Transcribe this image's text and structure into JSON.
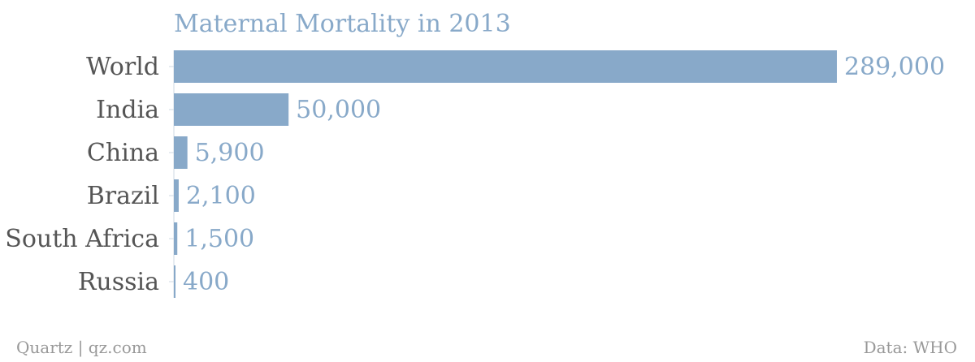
{
  "colors": {
    "bar": "#88a9c9",
    "value_text": "#88a9c9",
    "category_text": "#555555",
    "title": "#88a9c9",
    "footer": "#999999",
    "axis": "#cfd8e3"
  },
  "footer": {
    "left": "Quartz | qz.com",
    "right": "Data: WHO"
  },
  "chart_data": {
    "type": "bar",
    "orientation": "horizontal",
    "title": "Maternal Mortality in 2013",
    "categories": [
      "World",
      "India",
      "China",
      "Brazil",
      "South Africa",
      "Russia"
    ],
    "values": [
      289000,
      50000,
      5900,
      2100,
      1500,
      400
    ],
    "value_labels": [
      "289,000",
      "50,000",
      "5,900",
      "2,100",
      "1,500",
      "400"
    ],
    "xlim": [
      0,
      289000
    ],
    "grid": false,
    "legend": "none"
  }
}
